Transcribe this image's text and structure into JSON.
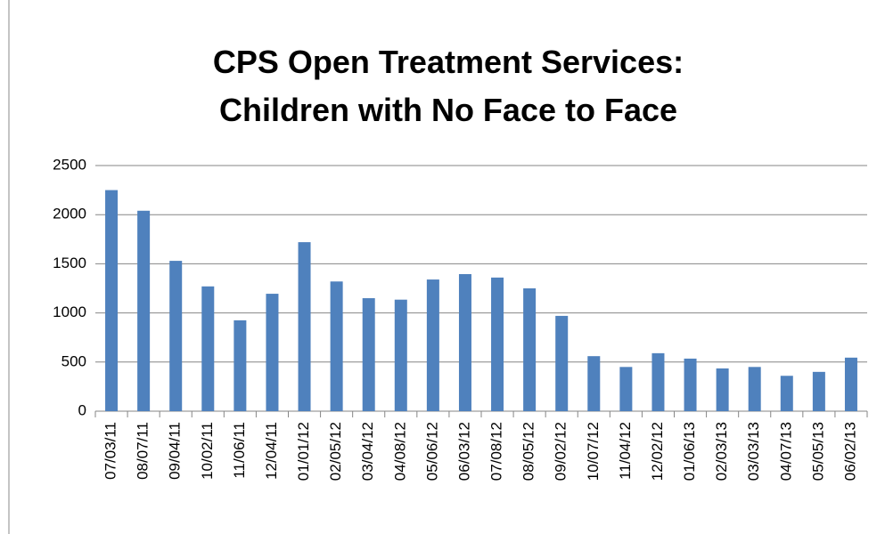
{
  "chart_data": {
    "type": "bar",
    "title": [
      "CPS Open Treatment Services:",
      "Children with No Face to Face"
    ],
    "categories": [
      "07/03/11",
      "08/07/11",
      "09/04/11",
      "10/02/11",
      "11/06/11",
      "12/04/11",
      "01/01/12",
      "02/05/12",
      "03/04/12",
      "04/08/12",
      "05/06/12",
      "06/03/12",
      "07/08/12",
      "08/05/12",
      "09/02/12",
      "10/07/12",
      "11/04/12",
      "12/02/12",
      "01/06/13",
      "02/03/13",
      "03/03/13",
      "04/07/13",
      "05/05/13",
      "06/02/13"
    ],
    "values": [
      2250,
      2040,
      1530,
      1270,
      925,
      1195,
      1720,
      1320,
      1150,
      1135,
      1340,
      1395,
      1360,
      1250,
      970,
      560,
      450,
      590,
      535,
      435,
      450,
      360,
      400,
      545
    ],
    "color": "#4f81bd",
    "ylim": [
      0,
      2500
    ],
    "yticks": [
      0,
      500,
      1000,
      1500,
      2000,
      2500
    ],
    "grid": true
  }
}
